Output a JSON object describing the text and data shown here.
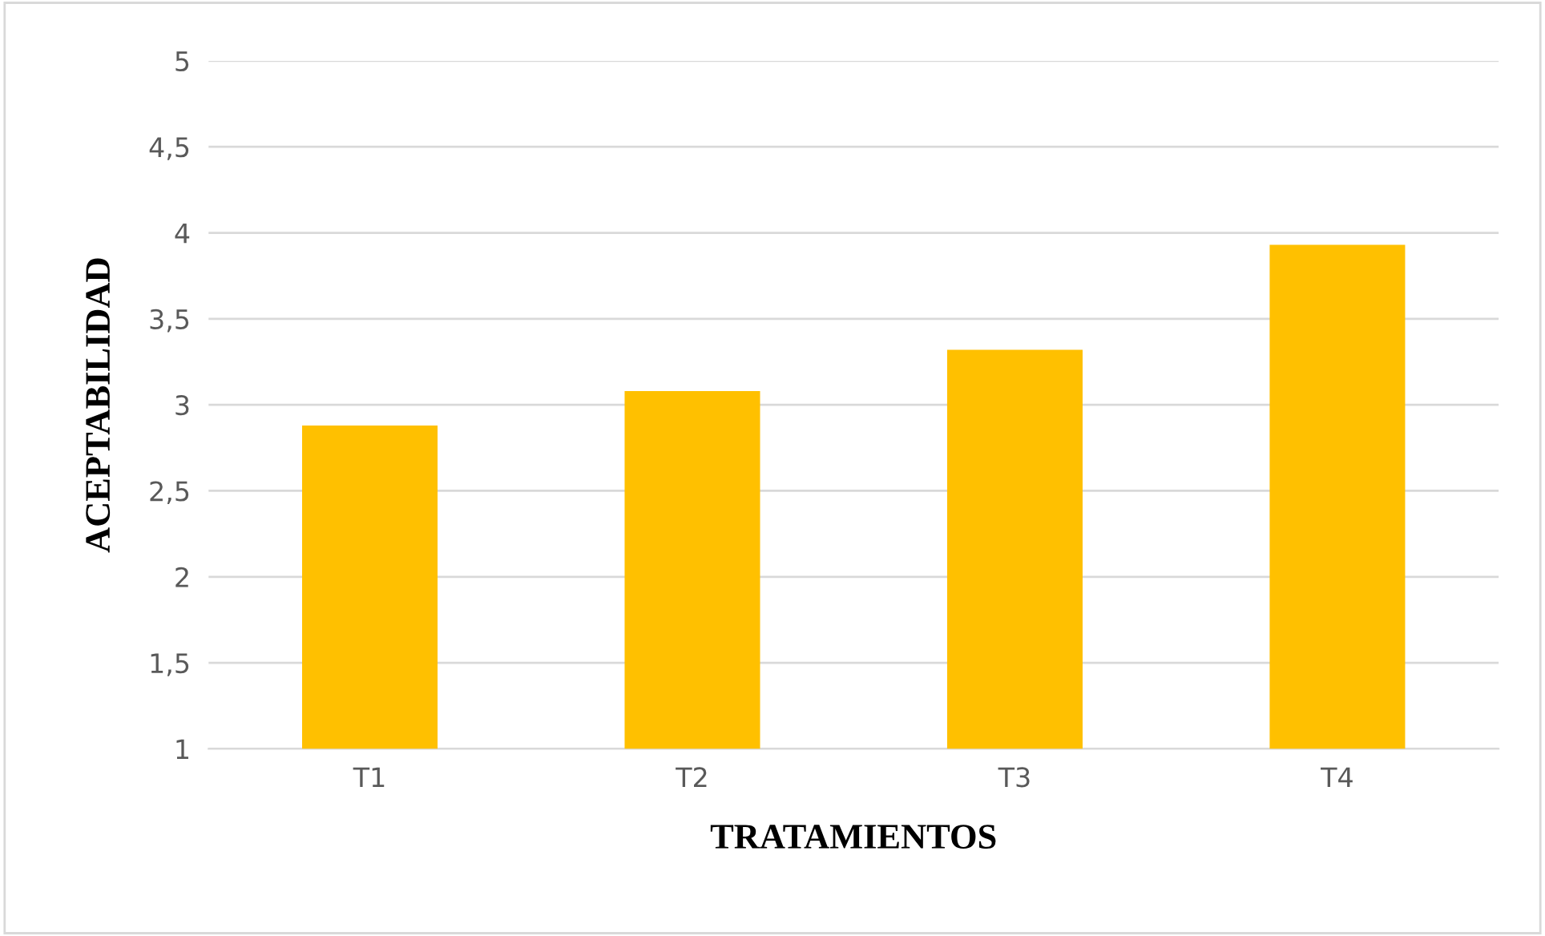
{
  "chart_data": {
    "type": "bar",
    "xlabel": "TRATAMIENTOS",
    "ylabel": "ACEPTABILIDAD",
    "categories": [
      "T1",
      "T2",
      "T3",
      "T4"
    ],
    "values": [
      2.88,
      3.08,
      3.32,
      3.93
    ],
    "color": "#ffc000",
    "ylim": [
      1,
      5
    ],
    "yticks": [
      1,
      {
        "value": 1.5,
        "label": "1,5"
      },
      2,
      {
        "value": 2.5,
        "label": "2,5"
      },
      3,
      {
        "value": 3.5,
        "label": "3,5"
      },
      4,
      {
        "value": 4.5,
        "label": "4,5"
      },
      5
    ],
    "grid": "y"
  }
}
